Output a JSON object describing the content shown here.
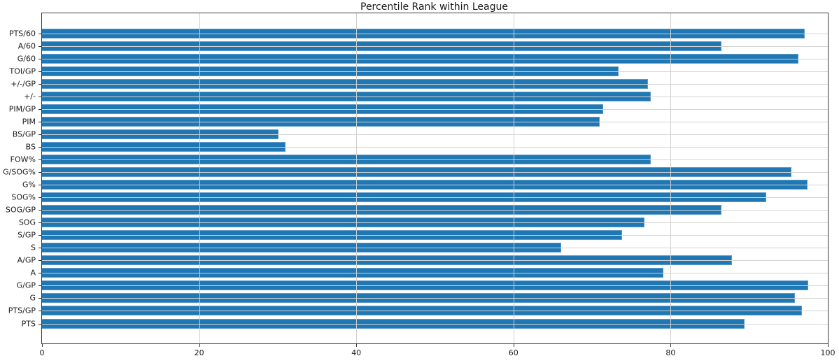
{
  "title": "Percentile Rank within League",
  "chart_data": {
    "type": "bar",
    "orientation": "horizontal",
    "title": "Percentile Rank within League",
    "xlabel": "",
    "ylabel": "",
    "xlim": [
      0,
      100
    ],
    "x_ticks": [
      0,
      20,
      40,
      60,
      80,
      100
    ],
    "grid": true,
    "legend": false,
    "categories_top_to_bottom": [
      "PTS/60",
      "A/60",
      "G/60",
      "TOI/GP",
      "+/-/GP",
      "+/-",
      "PIM/GP",
      "PIM",
      "BS/GP",
      "BS",
      "FOW%",
      "G/SOG%",
      "G%",
      "SOG%",
      "SOG/GP",
      "SOG",
      "S/GP",
      "S",
      "A/GP",
      "A",
      "G/GP",
      "G",
      "PTS/GP",
      "PTS"
    ],
    "values": [
      97.1,
      86.5,
      96.3,
      73.4,
      77.1,
      77.5,
      71.4,
      71.0,
      30.1,
      31.0,
      77.5,
      95.4,
      97.4,
      92.2,
      86.5,
      76.7,
      73.8,
      66.1,
      87.8,
      79.1,
      97.5,
      95.8,
      96.7,
      89.4
    ],
    "bar_color": "#1f77b4",
    "bar_edge_color": "#5b9ac9",
    "grid_color": "#cfcfcf",
    "frame_color": "#3c3c3c",
    "background_color": "#ffffff"
  }
}
